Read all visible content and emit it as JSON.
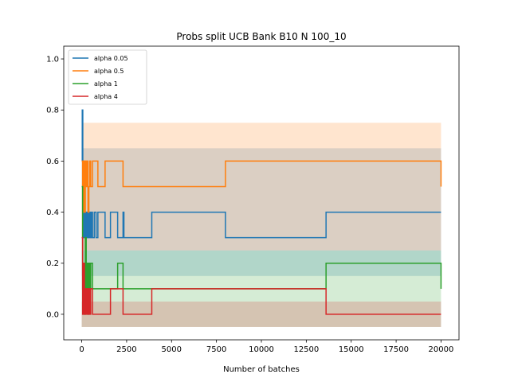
{
  "chart_data": {
    "type": "line",
    "title": "Probs split UCB Bank B10 N 100_10",
    "xlabel": "Number of batches",
    "ylabel": "",
    "xlim": [
      -1000,
      21000
    ],
    "ylim": [
      -0.1,
      1.05
    ],
    "xticks": [
      0,
      2500,
      5000,
      7500,
      10000,
      12500,
      15000,
      17500,
      20000
    ],
    "yticks": [
      0.0,
      0.2,
      0.4,
      0.6,
      0.8,
      1.0
    ],
    "xtick_labels": [
      "0",
      "2500",
      "5000",
      "7500",
      "10000",
      "12500",
      "15000",
      "17500",
      "20000"
    ],
    "ytick_labels": [
      "0.0",
      "0.2",
      "0.4",
      "0.6",
      "0.8",
      "1.0"
    ],
    "grid": false,
    "legend_position": "top-left",
    "series": [
      {
        "name": "alpha 0.05",
        "color": "#1f77b4",
        "x": [
          0,
          30,
          60,
          100,
          150,
          200,
          250,
          300,
          350,
          400,
          450,
          500,
          550,
          600,
          700,
          800,
          900,
          1300,
          1600,
          2000,
          2300,
          2350,
          3900,
          8000,
          13600,
          20000
        ],
        "y": [
          0.6,
          0.8,
          0.5,
          0.3,
          0.4,
          0.3,
          0.4,
          0.3,
          0.4,
          0.3,
          0.4,
          0.3,
          0.4,
          0.3,
          0.4,
          0.3,
          0.4,
          0.3,
          0.4,
          0.3,
          0.4,
          0.3,
          0.4,
          0.3,
          0.4,
          0.4
        ],
        "band": [
          0.15,
          0.65
        ]
      },
      {
        "name": "alpha 0.5",
        "color": "#ff7f0e",
        "x": [
          0,
          50,
          100,
          150,
          200,
          250,
          300,
          350,
          400,
          450,
          500,
          600,
          900,
          1300,
          2300,
          8000,
          20000
        ],
        "y": [
          0.6,
          0.4,
          0.6,
          0.4,
          0.6,
          0.5,
          0.6,
          0.4,
          0.5,
          0.6,
          0.5,
          0.6,
          0.5,
          0.6,
          0.5,
          0.6,
          0.5
        ],
        "band": [
          0.25,
          0.75
        ]
      },
      {
        "name": "alpha 1",
        "color": "#2ca02c",
        "x": [
          0,
          50,
          100,
          150,
          200,
          250,
          300,
          350,
          400,
          450,
          500,
          600,
          2000,
          2300,
          13600,
          20000
        ],
        "y": [
          0.5,
          0.1,
          0.2,
          0.0,
          0.3,
          0.1,
          0.2,
          0.0,
          0.2,
          0.1,
          0.2,
          0.1,
          0.2,
          0.1,
          0.2,
          0.1
        ],
        "band": [
          -0.05,
          0.25
        ]
      },
      {
        "name": "alpha 4",
        "color": "#d62728",
        "x": [
          0,
          50,
          100,
          150,
          200,
          250,
          300,
          350,
          400,
          450,
          500,
          600,
          1600,
          2300,
          3900,
          13600,
          20000
        ],
        "y": [
          0.3,
          0.0,
          0.2,
          0.0,
          0.1,
          0.0,
          0.1,
          0.0,
          0.1,
          0.0,
          0.1,
          0.0,
          0.1,
          0.0,
          0.1,
          0.0,
          0.0
        ],
        "band": [
          -0.05,
          0.05
        ]
      }
    ]
  }
}
